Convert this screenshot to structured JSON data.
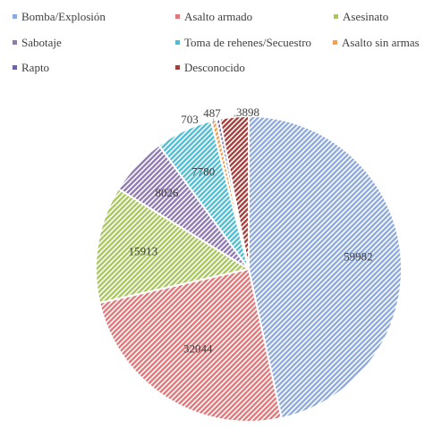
{
  "chart_data": {
    "type": "pie",
    "title": "",
    "legend_position": "top",
    "series": [
      {
        "name": "Bomba/Explosión",
        "value": 59982,
        "color": "#8EA9DB"
      },
      {
        "name": "Asalto armado",
        "value": 32044,
        "color": "#E0787A"
      },
      {
        "name": "Asesinato",
        "value": 15913,
        "color": "#A9C75F"
      },
      {
        "name": "Sabotaje",
        "value": 8026,
        "color": "#8F7AB3"
      },
      {
        "name": "Toma de rehenes/Secuestro",
        "value": 7780,
        "color": "#4FBDD4"
      },
      {
        "name": "Asalto sin armas",
        "value": 703,
        "color": "#F6A04D"
      },
      {
        "name": "Rapto",
        "value": 487,
        "color": "#6B62AE"
      },
      {
        "name": "Desconocido",
        "value": 3898,
        "color": "#A43E3B"
      }
    ]
  }
}
